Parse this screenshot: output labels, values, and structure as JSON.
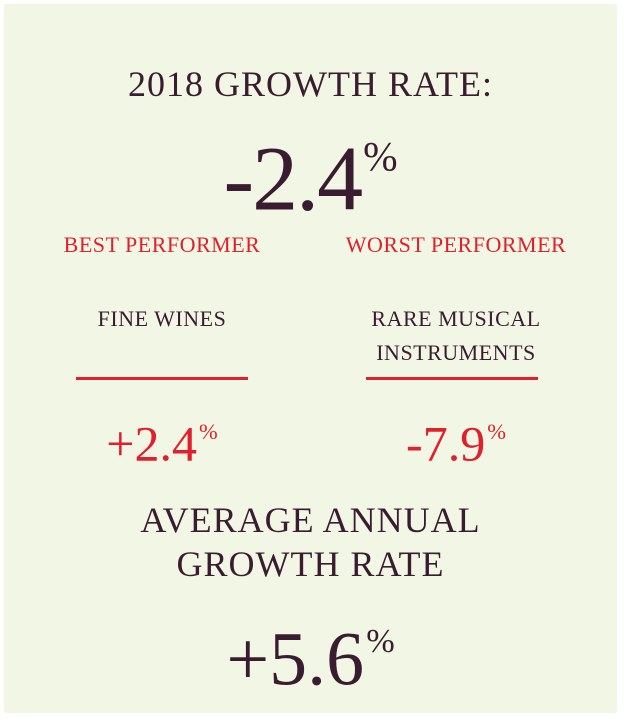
{
  "headline": "2018 GROWTH RATE:",
  "overall": {
    "value": "-2.4",
    "unit": "%"
  },
  "best": {
    "label": "BEST PERFORMER",
    "category_line1": "FINE WINES",
    "category_line2": "",
    "value": "+2.4",
    "unit": "%"
  },
  "worst": {
    "label": "WORST PERFORMER",
    "category_line1": "RARE MUSICAL",
    "category_line2": "INSTRUMENTS",
    "value": "-7.9",
    "unit": "%"
  },
  "average": {
    "label_line1": "AVERAGE ANNUAL",
    "label_line2": "GROWTH RATE",
    "value": "+5.6",
    "unit": "%"
  },
  "colors": {
    "background": "#f1f7e4",
    "primary_text": "#3a1c30",
    "accent_red": "#e0202c"
  }
}
